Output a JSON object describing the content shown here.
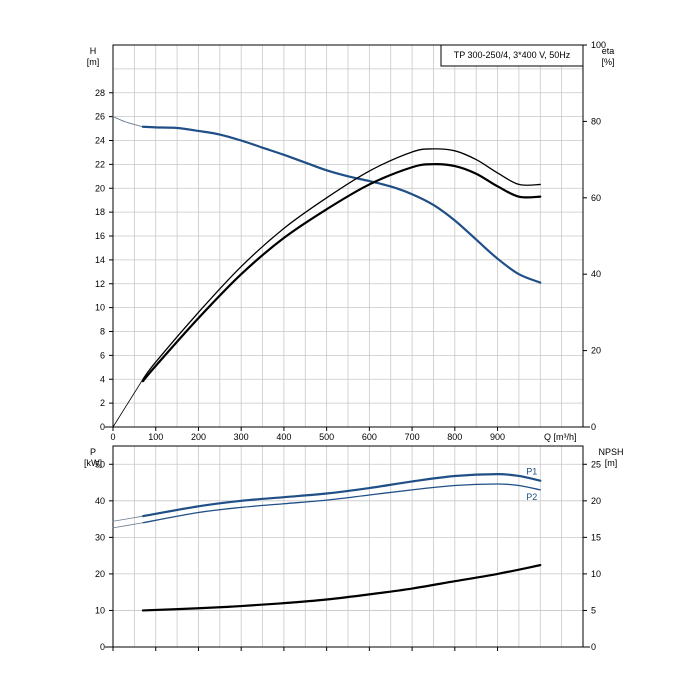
{
  "chart_data": [
    {
      "type": "line",
      "title": "TP 300-250/4, 3*400 V, 50Hz",
      "y_label": "H",
      "y_unit": "[m]",
      "y2_label": "eta",
      "y2_unit": "[%]",
      "x_label": "Q [m³/h]",
      "x_range": [
        0,
        1100
      ],
      "y_range": [
        0,
        32
      ],
      "y2_range": [
        0,
        100
      ],
      "x_ticks": [
        "0",
        "100",
        "200",
        "300",
        "400",
        "500",
        "600",
        "700",
        "800",
        "900"
      ],
      "y_ticks": [
        "0",
        "2",
        "4",
        "6",
        "8",
        "10",
        "12",
        "14",
        "16",
        "18",
        "20",
        "22",
        "24",
        "26",
        "28"
      ],
      "y2_ticks": [
        "0",
        "20",
        "40",
        "60",
        "80",
        "100"
      ],
      "grid": true,
      "colors": {
        "head": "#1f4f86",
        "efficiency": "#000000"
      },
      "series": [
        {
          "axis": "left",
          "role": "head-extension",
          "points": [
            [
              0,
              26
            ],
            [
              30,
              25.55
            ],
            [
              70,
              25.15
            ]
          ]
        },
        {
          "axis": "left",
          "role": "head",
          "points": [
            [
              70,
              25.15
            ],
            [
              100,
              25.1
            ],
            [
              150,
              25.05
            ],
            [
              200,
              24.8
            ],
            [
              250,
              24.5
            ],
            [
              300,
              24.0
            ],
            [
              350,
              23.4
            ],
            [
              400,
              22.8
            ],
            [
              450,
              22.15
            ],
            [
              500,
              21.5
            ],
            [
              550,
              21.0
            ],
            [
              600,
              20.6
            ],
            [
              650,
              20.15
            ],
            [
              700,
              19.5
            ],
            [
              750,
              18.6
            ],
            [
              800,
              17.3
            ],
            [
              850,
              15.7
            ],
            [
              900,
              14.1
            ],
            [
              950,
              12.8
            ],
            [
              1000,
              12.1
            ]
          ]
        },
        {
          "axis": "right",
          "role": "efficiency-1",
          "points": [
            [
              70,
              12.5
            ],
            [
              100,
              17
            ],
            [
              200,
              30
            ],
            [
              300,
              42
            ],
            [
              400,
              52
            ],
            [
              500,
              60
            ],
            [
              600,
              67
            ],
            [
              700,
              72
            ],
            [
              750,
              72.8
            ],
            [
              800,
              72.3
            ],
            [
              850,
              70
            ],
            [
              900,
              66.5
            ],
            [
              950,
              63.5
            ],
            [
              1000,
              63.5
            ]
          ]
        },
        {
          "axis": "right",
          "role": "efficiency-2",
          "points": [
            [
              70,
              12
            ],
            [
              100,
              16
            ],
            [
              200,
              28.5
            ],
            [
              300,
              40
            ],
            [
              400,
              49.5
            ],
            [
              500,
              57
            ],
            [
              600,
              63.5
            ],
            [
              700,
              68
            ],
            [
              750,
              68.8
            ],
            [
              800,
              68.3
            ],
            [
              850,
              66.3
            ],
            [
              900,
              63
            ],
            [
              950,
              60.3
            ],
            [
              1000,
              60.3
            ]
          ]
        },
        {
          "axis": "right",
          "role": "efficiency-extension",
          "points": [
            [
              0,
              0
            ],
            [
              70,
              12.5
            ]
          ]
        }
      ]
    },
    {
      "type": "line",
      "y_label": "P",
      "y_unit": "[kW]",
      "y2_label": "NPSH",
      "y2_unit": "[m]",
      "x_range": [
        0,
        1100
      ],
      "y_range": [
        0,
        55
      ],
      "y2_range": [
        0,
        27.5
      ],
      "y_ticks": [
        "0",
        "10",
        "20",
        "30",
        "40",
        "50"
      ],
      "y2_ticks": [
        "0",
        "5",
        "10",
        "15",
        "20",
        "25"
      ],
      "grid": true,
      "colors": {
        "power": "#1f4f86",
        "npsh": "#000000"
      },
      "series": [
        {
          "name": "P1",
          "axis": "left",
          "role": "p1",
          "points": [
            [
              70,
              35.8
            ],
            [
              200,
              38.5
            ],
            [
              300,
              40.0
            ],
            [
              400,
              41.0
            ],
            [
              500,
              42.0
            ],
            [
              600,
              43.5
            ],
            [
              700,
              45.3
            ],
            [
              800,
              46.8
            ],
            [
              900,
              47.3
            ],
            [
              950,
              46.8
            ],
            [
              1000,
              45.5
            ]
          ]
        },
        {
          "axis": "left",
          "role": "p1-extension",
          "points": [
            [
              0,
              34.4
            ],
            [
              70,
              35.8
            ]
          ]
        },
        {
          "name": "P2",
          "axis": "left",
          "role": "p2",
          "points": [
            [
              70,
              34.0
            ],
            [
              200,
              36.8
            ],
            [
              300,
              38.2
            ],
            [
              400,
              39.2
            ],
            [
              500,
              40.2
            ],
            [
              600,
              41.6
            ],
            [
              700,
              43.0
            ],
            [
              800,
              44.2
            ],
            [
              900,
              44.6
            ],
            [
              950,
              44.2
            ],
            [
              1000,
              43.0
            ]
          ]
        },
        {
          "axis": "left",
          "role": "p2-extension",
          "points": [
            [
              0,
              32.6
            ],
            [
              70,
              34.0
            ]
          ]
        },
        {
          "axis": "right",
          "role": "npsh",
          "points": [
            [
              70,
              5.0
            ],
            [
              200,
              5.3
            ],
            [
              300,
              5.6
            ],
            [
              400,
              6.0
            ],
            [
              500,
              6.5
            ],
            [
              600,
              7.2
            ],
            [
              700,
              8.0
            ],
            [
              800,
              9.0
            ],
            [
              900,
              10.0
            ],
            [
              1000,
              11.2
            ]
          ]
        }
      ]
    }
  ]
}
